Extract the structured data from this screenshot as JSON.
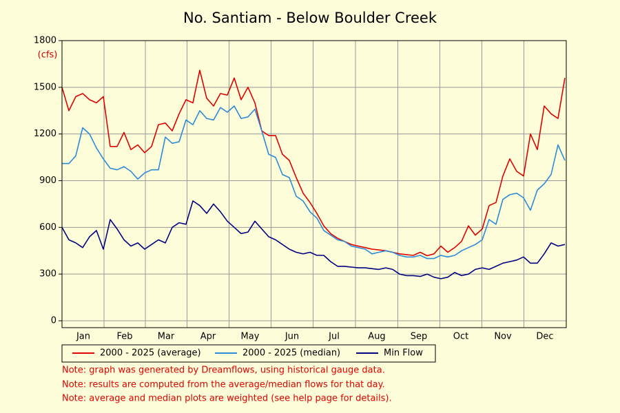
{
  "chart_data": {
    "type": "line",
    "title": "No. Santiam - Below Boulder Creek",
    "y_unit_label": "(cfs)",
    "x": [
      0,
      5,
      10,
      15,
      20,
      25,
      30,
      35,
      40,
      45,
      50,
      55,
      60,
      65,
      70,
      75,
      80,
      85,
      90,
      95,
      100,
      105,
      110,
      115,
      120,
      125,
      130,
      135,
      140,
      145,
      150,
      155,
      160,
      165,
      170,
      175,
      180,
      185,
      190,
      195,
      200,
      205,
      210,
      215,
      220,
      225,
      230,
      235,
      240,
      245,
      250,
      255,
      260,
      265,
      270,
      275,
      280,
      285,
      290,
      295,
      300,
      305,
      310,
      315,
      320,
      325,
      330,
      335,
      340,
      345,
      350,
      355,
      360,
      365
    ],
    "xlim": [
      0,
      366
    ],
    "xticks": [
      {
        "value": 15.5,
        "label": "Jan"
      },
      {
        "value": 45.5,
        "label": "Feb"
      },
      {
        "value": 75.5,
        "label": "Mar"
      },
      {
        "value": 106,
        "label": "Apr"
      },
      {
        "value": 136.5,
        "label": "May"
      },
      {
        "value": 167,
        "label": "Jun"
      },
      {
        "value": 197.5,
        "label": "Jul"
      },
      {
        "value": 228.5,
        "label": "Aug"
      },
      {
        "value": 259,
        "label": "Sep"
      },
      {
        "value": 289.5,
        "label": "Oct"
      },
      {
        "value": 320,
        "label": "Nov"
      },
      {
        "value": 350.5,
        "label": "Dec"
      }
    ],
    "ylim": [
      0,
      1800
    ],
    "yticks": [
      0,
      300,
      600,
      900,
      1200,
      1500,
      1800
    ],
    "grid": true,
    "series": [
      {
        "name": "2000 - 2025 (average)",
        "color": "#e00000",
        "values": [
          1500,
          1350,
          1440,
          1460,
          1420,
          1400,
          1440,
          1120,
          1120,
          1210,
          1100,
          1130,
          1080,
          1120,
          1260,
          1270,
          1220,
          1330,
          1420,
          1400,
          1610,
          1430,
          1380,
          1460,
          1450,
          1560,
          1420,
          1500,
          1400,
          1220,
          1190,
          1190,
          1070,
          1030,
          920,
          820,
          760,
          690,
          610,
          560,
          530,
          510,
          490,
          480,
          470,
          460,
          455,
          450,
          440,
          430,
          425,
          420,
          440,
          418,
          430,
          480,
          440,
          470,
          510,
          610,
          550,
          590,
          740,
          760,
          930,
          1040,
          960,
          930,
          1200,
          1100,
          1380,
          1330,
          1300,
          1560
        ]
      },
      {
        "name": "2000 - 2025 (median)",
        "color": "#2a8ad8",
        "values": [
          1010,
          1010,
          1060,
          1240,
          1200,
          1110,
          1040,
          980,
          970,
          990,
          960,
          910,
          950,
          970,
          970,
          1180,
          1140,
          1150,
          1290,
          1260,
          1350,
          1300,
          1290,
          1370,
          1340,
          1380,
          1300,
          1310,
          1360,
          1220,
          1070,
          1050,
          940,
          920,
          800,
          770,
          700,
          660,
          580,
          550,
          520,
          510,
          480,
          470,
          460,
          430,
          440,
          450,
          440,
          420,
          410,
          410,
          420,
          400,
          400,
          420,
          410,
          420,
          450,
          470,
          490,
          520,
          650,
          620,
          780,
          810,
          820,
          790,
          710,
          840,
          880,
          940,
          1130,
          1030
        ]
      },
      {
        "name": "Min Flow",
        "color": "#000080",
        "values": [
          600,
          520,
          500,
          470,
          540,
          580,
          460,
          650,
          590,
          520,
          480,
          500,
          460,
          490,
          520,
          500,
          600,
          630,
          620,
          770,
          740,
          690,
          750,
          700,
          640,
          600,
          560,
          570,
          640,
          590,
          540,
          520,
          490,
          460,
          440,
          430,
          440,
          420,
          420,
          380,
          350,
          350,
          345,
          340,
          340,
          335,
          330,
          340,
          330,
          300,
          290,
          290,
          285,
          300,
          280,
          270,
          280,
          310,
          290,
          300,
          330,
          340,
          330,
          350,
          370,
          380,
          390,
          410,
          370,
          370,
          430,
          500,
          480,
          490
        ]
      }
    ],
    "notes": [
      "Note: graph was generated by Dreamflows, using historical gauge data.",
      "Note: results are computed from the average/median flows for that day.",
      "Note: average and median plots are weighted (see help page for details)."
    ]
  }
}
